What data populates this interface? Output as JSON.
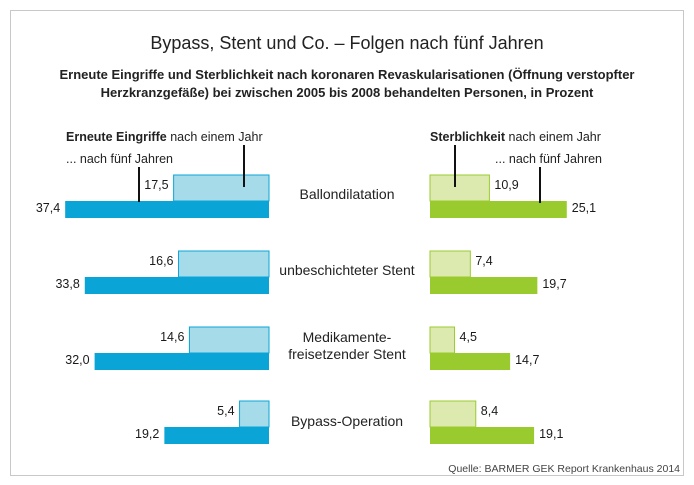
{
  "title": "Bypass, Stent und Co. – Folgen nach fünf Jahren",
  "subtitle_line1": "Erneute Eingriffe und Sterblichkeit nach koronaren Revaskularisationen (Öffnung verstopfter",
  "subtitle_line2": "Herzkranzgefäße) bei zwischen 2005 bis 2008 behandelten Personen, in Prozent",
  "legend_left": {
    "bold": "Erneute Eingriffe",
    "one_year": " nach einem Jahr",
    "five_years": "... nach fünf Jahren"
  },
  "legend_right": {
    "bold": "Sterblichkeit",
    "one_year": " nach einem Jahr",
    "five_years": "... nach fünf Jahren"
  },
  "source": "Quelle: BARMER GEK Report Krankenhaus 2014",
  "colors": {
    "left_five_years": "#0aa5d6",
    "left_one_year": "#a6dcea",
    "right_five_years": "#9acb2e",
    "right_one_year": "#dceab0"
  },
  "categories": {
    "c0": "Ballondilatation",
    "c1": "unbeschichteter Stent",
    "c2": "Medikamente-\nfreisetzender Stent",
    "c3": "Bypass-Operation"
  },
  "chart_data": {
    "type": "bar",
    "title": "Bypass, Stent und Co. – Folgen nach fünf Jahren",
    "categories": [
      "Ballondilatation",
      "unbeschichteter Stent",
      "Medikamente-freisetzender Stent",
      "Bypass-Operation"
    ],
    "series": [
      {
        "name": "Erneute Eingriffe nach einem Jahr",
        "values": [
          17.5,
          16.6,
          14.6,
          5.4
        ],
        "labels": [
          "17,5",
          "16,6",
          "14,6",
          "5,4"
        ]
      },
      {
        "name": "Erneute Eingriffe nach fünf Jahren",
        "values": [
          37.4,
          33.8,
          32.0,
          19.2
        ],
        "labels": [
          "37,4",
          "33,8",
          "32,0",
          "19,2"
        ]
      },
      {
        "name": "Sterblichkeit nach einem Jahr",
        "values": [
          10.9,
          7.4,
          4.5,
          8.4
        ],
        "labels": [
          "10,9",
          "7,4",
          "4,5",
          "8,4"
        ]
      },
      {
        "name": "Sterblichkeit nach fünf Jahren",
        "values": [
          25.1,
          19.7,
          14.7,
          19.1
        ],
        "labels": [
          "25,1",
          "19,7",
          "14,7",
          "19,1"
        ]
      }
    ],
    "unit": "Prozent"
  }
}
